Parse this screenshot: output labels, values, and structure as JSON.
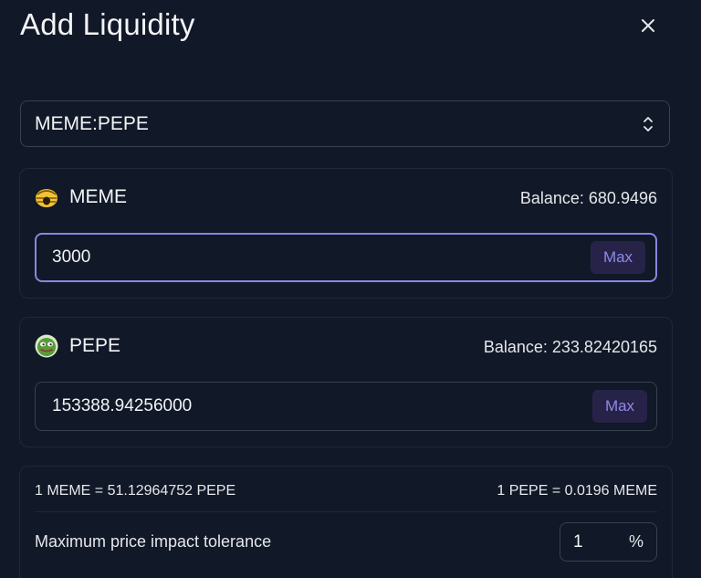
{
  "modal": {
    "title": "Add Liquidity",
    "close_icon": "close-icon"
  },
  "pair_select": {
    "value": "MEME:PEPE",
    "icon": "chevron-up-down-icon"
  },
  "token_a": {
    "name": "MEME",
    "icon": "meme-token-icon",
    "balance": "Balance: 680.9496",
    "amount": "3000",
    "max_label": "Max"
  },
  "token_b": {
    "name": "PEPE",
    "icon": "pepe-token-icon",
    "balance": "Balance: 233.82420165",
    "amount": "153388.94256000",
    "max_label": "Max"
  },
  "info": {
    "rate_a": "1 MEME = 51.12964752 PEPE",
    "rate_b": "1 PEPE = 0.0196 MEME",
    "impact_label": "Maximum price impact tolerance",
    "impact_value": "1",
    "impact_unit": "%"
  },
  "colors": {
    "background": "#111827",
    "border": "#374151",
    "accent": "#8b85e0",
    "max_bg": "#272348"
  }
}
